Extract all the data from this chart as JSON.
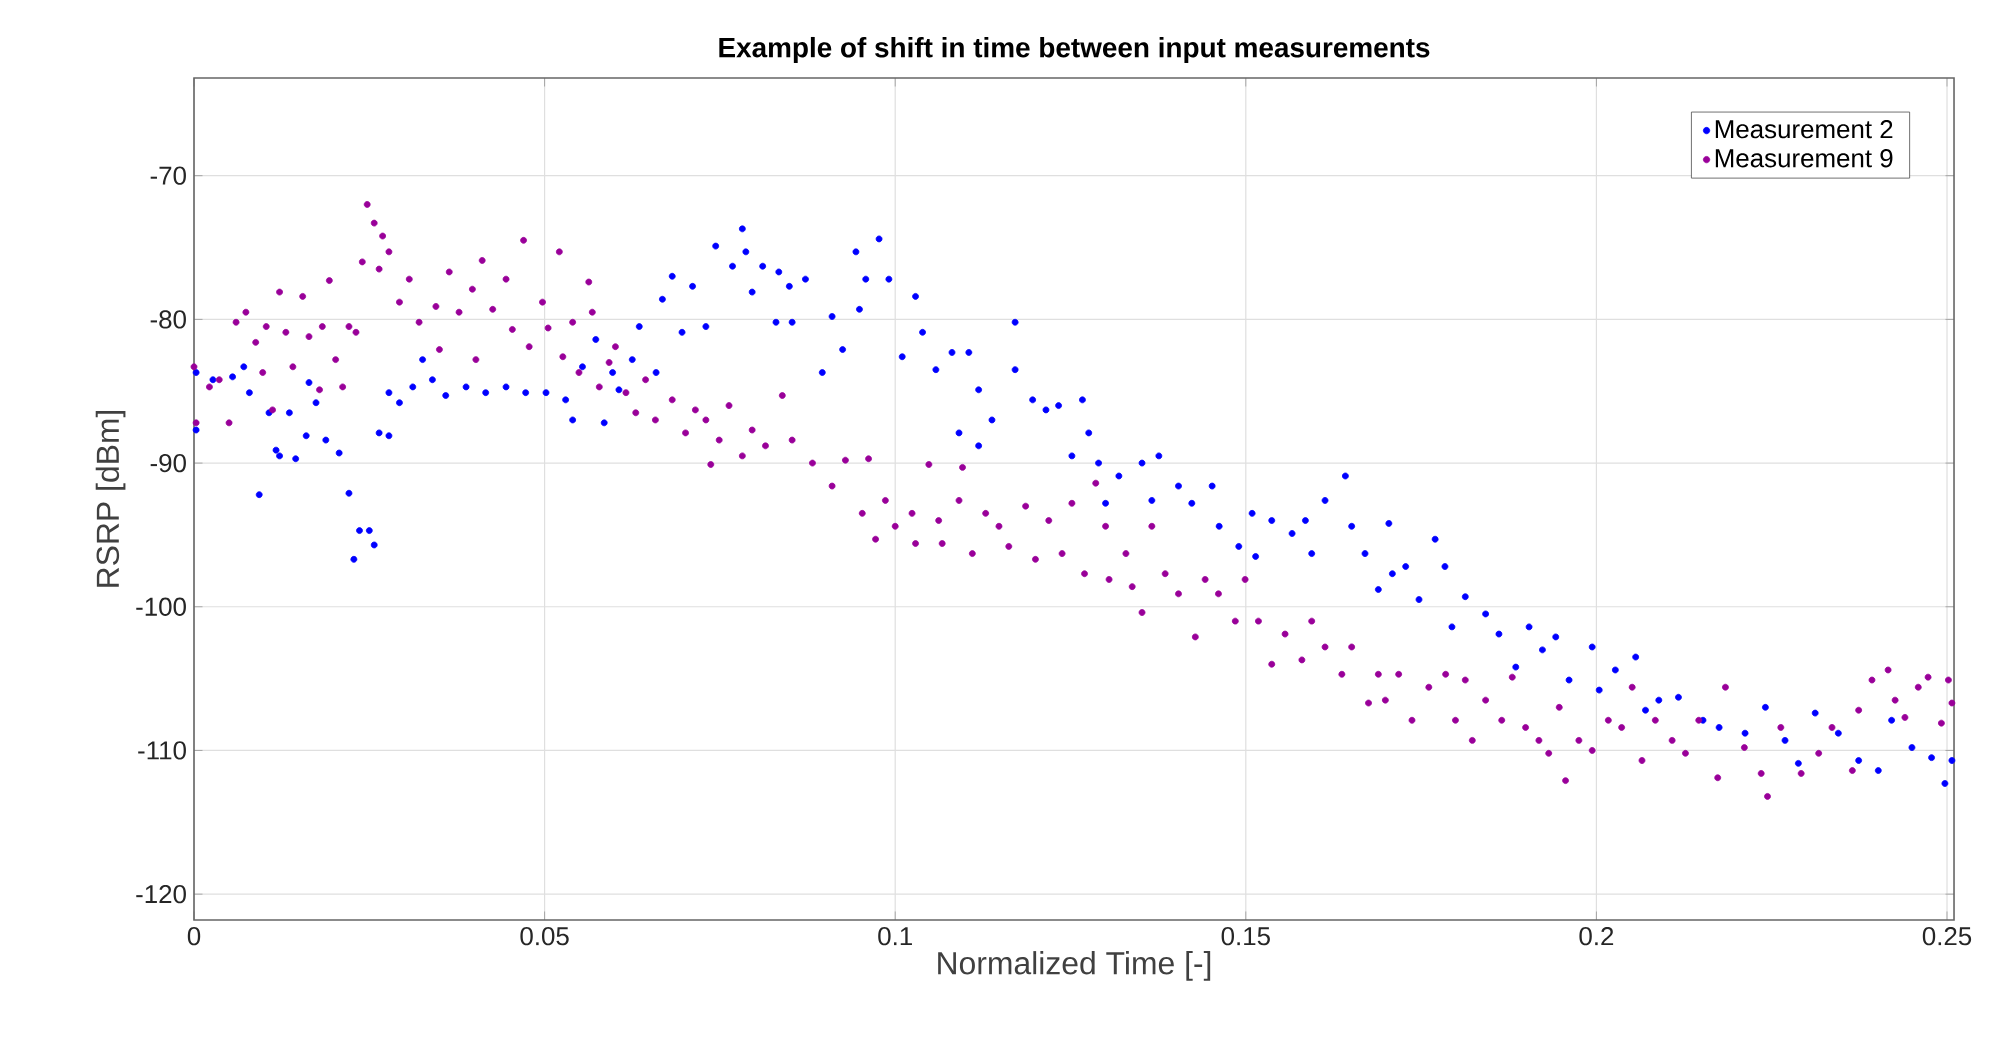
{
  "chart_data": {
    "type": "scatter",
    "title": "Example of shift in time between input measurements",
    "xlabel": "Normalized Time [-]",
    "ylabel": "RSRP [dBm]",
    "xlim": [
      0,
      0.251
    ],
    "ylim": [
      -121.8,
      -63.2
    ],
    "xticks": [
      0,
      0.05,
      0.1,
      0.15,
      0.2,
      0.25
    ],
    "yticks": [
      -120,
      -110,
      -100,
      -90,
      -80,
      -70
    ],
    "grid": true,
    "legend": "top right",
    "marker": "circle",
    "series": [
      {
        "name": "Measurement 2",
        "color": "#0000ff",
        "x": [
          0.0003,
          0.0003,
          0.0027,
          0.0055,
          0.0071,
          0.0079,
          0.0093,
          0.0107,
          0.0117,
          0.0122,
          0.0136,
          0.0145,
          0.016,
          0.0164,
          0.0174,
          0.0188,
          0.0207,
          0.0221,
          0.0228,
          0.0236,
          0.025,
          0.0257,
          0.0264,
          0.0278,
          0.0278,
          0.0293,
          0.0312,
          0.0326,
          0.034,
          0.0359,
          0.0388,
          0.0416,
          0.0445,
          0.0473,
          0.0502,
          0.053,
          0.054,
          0.0554,
          0.0573,
          0.0585,
          0.0597,
          0.0606,
          0.0625,
          0.0635,
          0.0659,
          0.0668,
          0.0682,
          0.0696,
          0.0711,
          0.073,
          0.0744,
          0.0768,
          0.0782,
          0.0787,
          0.0796,
          0.0811,
          0.083,
          0.0834,
          0.0849,
          0.0853,
          0.0872,
          0.0896,
          0.091,
          0.0925,
          0.0944,
          0.0949,
          0.0958,
          0.0977,
          0.0991,
          0.101,
          0.1029,
          0.1039,
          0.1058,
          0.1081,
          0.1091,
          0.1105,
          0.1119,
          0.1119,
          0.1138,
          0.1171,
          0.1171,
          0.1196,
          0.1215,
          0.1233,
          0.1252,
          0.1267,
          0.1276,
          0.129,
          0.13,
          0.1319,
          0.1352,
          0.1366,
          0.1376,
          0.1404,
          0.1423,
          0.1452,
          0.1462,
          0.149,
          0.1509,
          0.1514,
          0.1537,
          0.1566,
          0.1585,
          0.1594,
          0.1613,
          0.1642,
          0.1651,
          0.167,
          0.1689,
          0.1704,
          0.1709,
          0.1728,
          0.1747,
          0.177,
          0.1784,
          0.1794,
          0.1813,
          0.1842,
          0.1861,
          0.1885,
          0.1904,
          0.1923,
          0.1942,
          0.1961,
          0.1994,
          0.2004,
          0.2027,
          0.2056,
          0.207,
          0.2089,
          0.2117,
          0.2152,
          0.2175,
          0.2212,
          0.2241,
          0.2269,
          0.2288,
          0.2312,
          0.2345,
          0.2374,
          0.2402,
          0.2421,
          0.245,
          0.2478,
          0.2497,
          0.2507
        ],
        "values": [
          -87.7,
          -83.7,
          -84.2,
          -84.0,
          -83.3,
          -85.1,
          -92.2,
          -86.5,
          -89.1,
          -89.5,
          -86.5,
          -89.7,
          -88.1,
          -84.4,
          -85.8,
          -88.4,
          -89.3,
          -92.1,
          -96.7,
          -94.7,
          -94.7,
          -95.7,
          -87.9,
          -88.1,
          -85.1,
          -85.8,
          -84.7,
          -82.8,
          -84.2,
          -85.3,
          -84.7,
          -85.1,
          -84.7,
          -85.1,
          -85.1,
          -85.6,
          -87.0,
          -83.3,
          -81.4,
          -87.2,
          -83.7,
          -84.9,
          -82.8,
          -80.5,
          -83.7,
          -78.6,
          -77.0,
          -80.9,
          -77.7,
          -80.5,
          -74.9,
          -76.3,
          -73.7,
          -75.3,
          -78.1,
          -76.3,
          -80.2,
          -76.7,
          -77.7,
          -80.2,
          -77.2,
          -83.7,
          -79.8,
          -82.1,
          -75.3,
          -79.3,
          -77.2,
          -74.4,
          -77.2,
          -82.6,
          -78.4,
          -80.9,
          -83.5,
          -82.3,
          -87.9,
          -82.3,
          -88.8,
          -84.9,
          -87.0,
          -80.2,
          -83.5,
          -85.6,
          -86.3,
          -86.0,
          -89.5,
          -85.6,
          -87.9,
          -90.0,
          -92.8,
          -90.9,
          -90.0,
          -92.6,
          -89.5,
          -91.6,
          -92.8,
          -91.6,
          -94.4,
          -95.8,
          -93.5,
          -96.5,
          -94.0,
          -94.9,
          -94.0,
          -96.3,
          -92.6,
          -90.9,
          -94.4,
          -96.3,
          -98.8,
          -94.2,
          -97.7,
          -97.2,
          -99.5,
          -95.3,
          -97.2,
          -101.4,
          -99.3,
          -100.5,
          -101.9,
          -104.2,
          -101.4,
          -103.0,
          -102.1,
          -105.1,
          -102.8,
          -105.8,
          -104.4,
          -103.5,
          -107.2,
          -106.5,
          -106.3,
          -107.9,
          -108.4,
          -108.8,
          -107.0,
          -109.3,
          -110.9,
          -107.4,
          -108.8,
          -110.7,
          -111.4,
          -107.9,
          -109.8,
          -110.5,
          -112.3,
          -110.7
        ]
      },
      {
        "name": "Measurement 9",
        "color": "#990099",
        "x": [
          0.0,
          0.0003,
          0.0022,
          0.0036,
          0.005,
          0.006,
          0.0074,
          0.0088,
          0.0098,
          0.0103,
          0.0112,
          0.0122,
          0.0131,
          0.0141,
          0.0155,
          0.0164,
          0.0179,
          0.0183,
          0.0193,
          0.0202,
          0.0212,
          0.0221,
          0.0231,
          0.024,
          0.0247,
          0.0257,
          0.0264,
          0.0269,
          0.0278,
          0.0293,
          0.0307,
          0.0321,
          0.0345,
          0.035,
          0.0364,
          0.0378,
          0.0397,
          0.0402,
          0.0411,
          0.0426,
          0.0445,
          0.0454,
          0.047,
          0.0478,
          0.0497,
          0.0505,
          0.0521,
          0.0526,
          0.054,
          0.0549,
          0.0563,
          0.0568,
          0.0578,
          0.0592,
          0.0601,
          0.0616,
          0.063,
          0.0644,
          0.0658,
          0.0682,
          0.0701,
          0.0715,
          0.073,
          0.0737,
          0.0749,
          0.0763,
          0.0782,
          0.0796,
          0.0815,
          0.0839,
          0.0853,
          0.0882,
          0.091,
          0.0929,
          0.0953,
          0.0962,
          0.0972,
          0.0986,
          0.1,
          0.1024,
          0.1029,
          0.1048,
          0.1062,
          0.1067,
          0.1091,
          0.1096,
          0.111,
          0.1129,
          0.1148,
          0.1162,
          0.1186,
          0.12,
          0.1219,
          0.1238,
          0.1252,
          0.127,
          0.1286,
          0.13,
          0.1305,
          0.1329,
          0.1338,
          0.1352,
          0.1366,
          0.1385,
          0.1404,
          0.1428,
          0.1442,
          0.1461,
          0.1485,
          0.1499,
          0.1518,
          0.1537,
          0.1556,
          0.158,
          0.1594,
          0.1613,
          0.1637,
          0.1651,
          0.1675,
          0.1689,
          0.1699,
          0.1718,
          0.1737,
          0.1761,
          0.1785,
          0.1799,
          0.1813,
          0.1823,
          0.1842,
          0.1865,
          0.188,
          0.1899,
          0.1918,
          0.1932,
          0.1947,
          0.1956,
          0.1975,
          0.1994,
          0.2017,
          0.2036,
          0.2051,
          0.2065,
          0.2084,
          0.2108,
          0.2127,
          0.2146,
          0.2173,
          0.2184,
          0.2211,
          0.2235,
          0.2244,
          0.2263,
          0.2292,
          0.2317,
          0.2336,
          0.2365,
          0.2374,
          0.2393,
          0.2416,
          0.2426,
          0.244,
          0.2459,
          0.2473,
          0.2492,
          0.2502,
          0.2507
        ],
        "values": [
          -83.3,
          -87.2,
          -84.7,
          -84.2,
          -87.2,
          -80.2,
          -79.5,
          -81.6,
          -83.7,
          -80.5,
          -86.3,
          -78.1,
          -80.9,
          -83.3,
          -78.4,
          -81.2,
          -84.9,
          -80.5,
          -77.3,
          -82.8,
          -84.7,
          -80.5,
          -80.9,
          -76.0,
          -72.0,
          -73.3,
          -76.5,
          -74.2,
          -75.3,
          -78.8,
          -77.2,
          -80.2,
          -79.1,
          -82.1,
          -76.7,
          -79.5,
          -77.9,
          -82.8,
          -75.9,
          -79.3,
          -77.2,
          -80.7,
          -74.5,
          -81.9,
          -78.8,
          -80.6,
          -75.3,
          -82.6,
          -80.2,
          -83.7,
          -77.4,
          -79.5,
          -84.7,
          -83.0,
          -81.9,
          -85.1,
          -86.5,
          -84.2,
          -87.0,
          -85.6,
          -87.9,
          -86.3,
          -87.0,
          -90.1,
          -88.4,
          -86.0,
          -89.5,
          -87.7,
          -88.8,
          -85.3,
          -88.4,
          -90.0,
          -91.6,
          -89.8,
          -93.5,
          -89.7,
          -95.3,
          -92.6,
          -94.4,
          -93.5,
          -95.6,
          -90.1,
          -94.0,
          -95.6,
          -92.6,
          -90.3,
          -96.3,
          -93.5,
          -94.4,
          -95.8,
          -93.0,
          -96.7,
          -94.0,
          -96.3,
          -92.8,
          -97.7,
          -91.4,
          -94.4,
          -98.1,
          -96.3,
          -98.6,
          -100.4,
          -94.4,
          -97.7,
          -99.1,
          -102.1,
          -98.1,
          -99.1,
          -101.0,
          -98.1,
          -101.0,
          -104.0,
          -101.9,
          -103.7,
          -101.0,
          -102.8,
          -104.7,
          -102.8,
          -106.7,
          -104.7,
          -106.5,
          -104.7,
          -107.9,
          -105.6,
          -104.7,
          -107.9,
          -105.1,
          -109.3,
          -106.5,
          -107.9,
          -104.9,
          -108.4,
          -109.3,
          -110.2,
          -107.0,
          -112.1,
          -109.3,
          -110.0,
          -107.9,
          -108.4,
          -105.6,
          -110.7,
          -107.9,
          -109.3,
          -110.2,
          -107.9,
          -111.9,
          -105.6,
          -109.8,
          -111.6,
          -113.2,
          -108.4,
          -111.6,
          -110.2,
          -108.4,
          -111.4,
          -107.2,
          -105.1,
          -104.4,
          -106.5,
          -107.7,
          -105.6,
          -104.9,
          -108.1,
          -105.1,
          -106.7
        ]
      }
    ]
  }
}
